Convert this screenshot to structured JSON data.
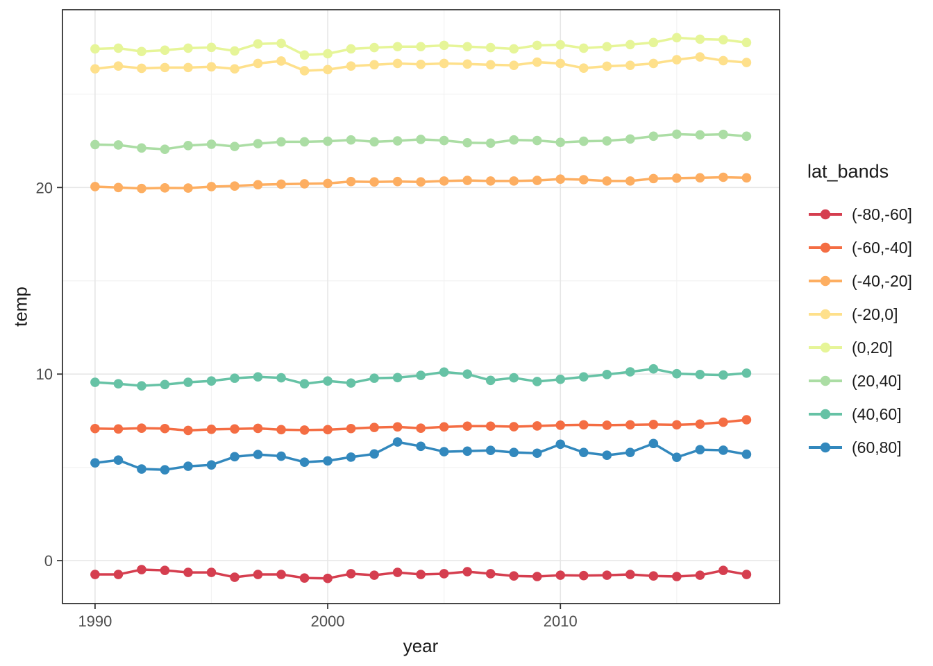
{
  "chart_data": {
    "type": "line",
    "title": "",
    "xlabel": "year",
    "ylabel": "temp",
    "legend_title": "lat_bands",
    "legend_position": "right",
    "grid": true,
    "xlim": [
      1988.6,
      2019.42
    ],
    "ylim": [
      -2.3,
      29.53
    ],
    "x_ticks": {
      "major": [
        1990,
        2000,
        2010
      ],
      "minor": [
        1995,
        2005,
        2015
      ],
      "labels": [
        "1990",
        "2000",
        "2010"
      ]
    },
    "y_ticks": {
      "major": [
        0,
        10,
        20
      ],
      "minor": [
        5,
        15,
        25
      ],
      "labels": [
        "0",
        "10",
        "20"
      ]
    },
    "x": [
      1990,
      1991,
      1992,
      1993,
      1994,
      1995,
      1996,
      1997,
      1998,
      1999,
      2000,
      2001,
      2002,
      2003,
      2004,
      2005,
      2006,
      2007,
      2008,
      2009,
      2010,
      2011,
      2012,
      2013,
      2014,
      2015,
      2016,
      2017,
      2018
    ],
    "series": [
      {
        "name": "(-80,-60]",
        "color": "#d53e4f",
        "values": [
          -0.74,
          -0.74,
          -0.48,
          -0.52,
          -0.63,
          -0.63,
          -0.89,
          -0.74,
          -0.74,
          -0.93,
          -0.95,
          -0.7,
          -0.78,
          -0.63,
          -0.74,
          -0.7,
          -0.59,
          -0.7,
          -0.82,
          -0.85,
          -0.78,
          -0.8,
          -0.78,
          -0.74,
          -0.82,
          -0.85,
          -0.78,
          -0.52,
          -0.74
        ]
      },
      {
        "name": "(-60,-40]",
        "color": "#f46d43",
        "values": [
          7.08,
          7.06,
          7.1,
          7.08,
          6.98,
          7.04,
          7.06,
          7.09,
          7.02,
          7.0,
          7.02,
          7.08,
          7.14,
          7.17,
          7.1,
          7.17,
          7.21,
          7.21,
          7.18,
          7.22,
          7.26,
          7.28,
          7.26,
          7.28,
          7.3,
          7.28,
          7.32,
          7.42,
          7.55
        ]
      },
      {
        "name": "(-40,-20]",
        "color": "#fdae61",
        "values": [
          20.05,
          20.0,
          19.95,
          19.98,
          19.97,
          20.05,
          20.08,
          20.15,
          20.18,
          20.2,
          20.22,
          20.32,
          20.3,
          20.32,
          20.3,
          20.35,
          20.38,
          20.35,
          20.35,
          20.38,
          20.45,
          20.42,
          20.35,
          20.35,
          20.48,
          20.5,
          20.52,
          20.55,
          20.52
        ]
      },
      {
        "name": "(-20,0]",
        "color": "#fee08b",
        "values": [
          26.36,
          26.51,
          26.39,
          26.43,
          26.43,
          26.47,
          26.36,
          26.65,
          26.78,
          26.26,
          26.32,
          26.51,
          26.58,
          26.65,
          26.6,
          26.65,
          26.62,
          26.58,
          26.55,
          26.72,
          26.65,
          26.4,
          26.5,
          26.55,
          26.65,
          26.85,
          27.0,
          26.8,
          26.7
        ]
      },
      {
        "name": "(0,20]",
        "color": "#e6f598",
        "values": [
          27.43,
          27.47,
          27.29,
          27.36,
          27.47,
          27.51,
          27.32,
          27.7,
          27.73,
          27.1,
          27.17,
          27.43,
          27.5,
          27.55,
          27.55,
          27.62,
          27.55,
          27.5,
          27.43,
          27.62,
          27.65,
          27.47,
          27.55,
          27.66,
          27.77,
          28.03,
          27.95,
          27.92,
          27.77
        ]
      },
      {
        "name": "(20,40]",
        "color": "#abdda4",
        "values": [
          22.3,
          22.28,
          22.12,
          22.05,
          22.25,
          22.32,
          22.2,
          22.35,
          22.45,
          22.45,
          22.48,
          22.55,
          22.45,
          22.5,
          22.58,
          22.52,
          22.4,
          22.38,
          22.55,
          22.52,
          22.42,
          22.48,
          22.5,
          22.6,
          22.75,
          22.86,
          22.82,
          22.85,
          22.75
        ]
      },
      {
        "name": "(40,60]",
        "color": "#66c2a5",
        "values": [
          9.56,
          9.48,
          9.37,
          9.44,
          9.56,
          9.63,
          9.78,
          9.85,
          9.8,
          9.48,
          9.63,
          9.52,
          9.78,
          9.81,
          9.93,
          10.11,
          10.0,
          9.66,
          9.8,
          9.6,
          9.72,
          9.85,
          9.98,
          10.12,
          10.28,
          10.02,
          9.98,
          9.95,
          10.05
        ]
      },
      {
        "name": "(60,80]",
        "color": "#3288bd",
        "values": [
          5.24,
          5.39,
          4.91,
          4.87,
          5.06,
          5.13,
          5.57,
          5.69,
          5.6,
          5.28,
          5.35,
          5.55,
          5.72,
          6.36,
          6.13,
          5.84,
          5.87,
          5.91,
          5.8,
          5.76,
          6.24,
          5.8,
          5.65,
          5.8,
          6.28,
          5.54,
          5.95,
          5.92,
          5.7
        ]
      }
    ]
  },
  "style_colors": {
    "background": "#ffffff",
    "panel_border": "#333333",
    "grid_major": "#e6e6e6",
    "grid_minor": "#f2f2f2",
    "tick_mark": "#333333",
    "tick_label": "#4d4d4d",
    "title_text": "#1a1a1a"
  }
}
